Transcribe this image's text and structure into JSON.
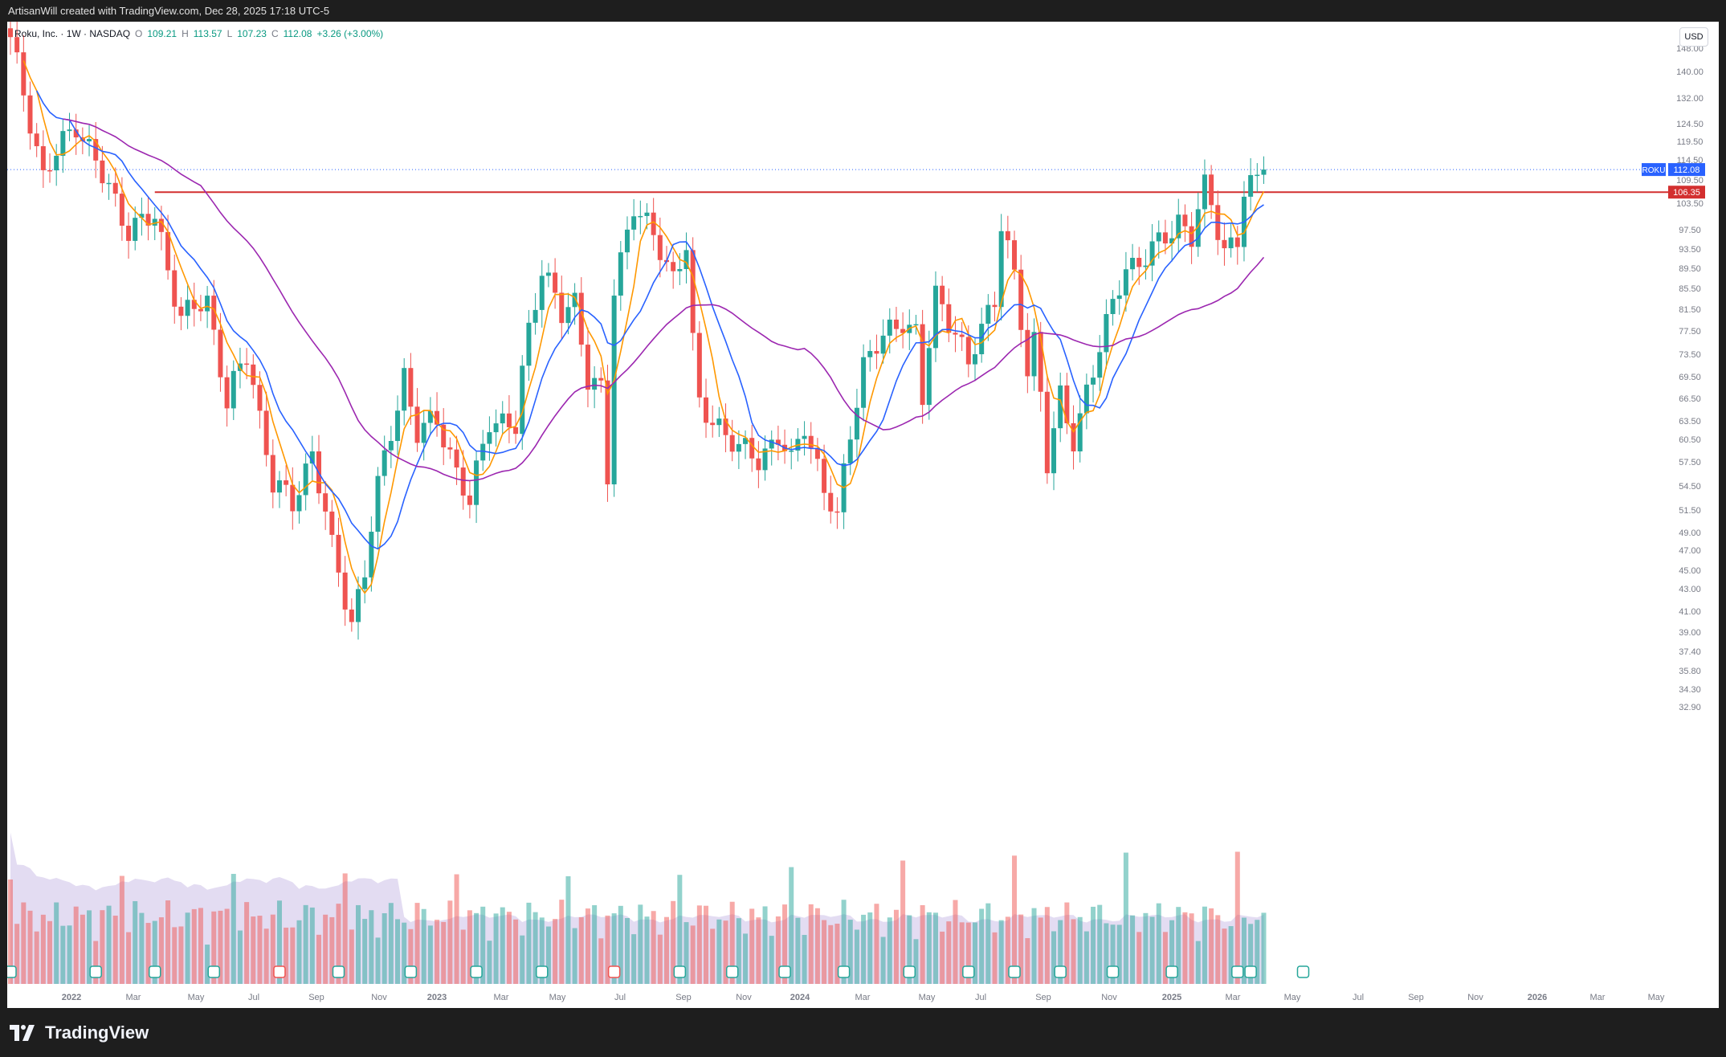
{
  "header": {
    "author_line": "ArtisanWill created with TradingView.com, Dec 28, 2025 17:18 UTC-5"
  },
  "legend": {
    "symbol_line": "Roku, Inc. · 1W · NASDAQ",
    "open_label": "O",
    "open_value": "109.21",
    "high_label": "H",
    "high_value": "113.57",
    "low_label": "L",
    "low_value": "107.23",
    "close_label": "C",
    "close_value": "112.08",
    "change_value": "+3.26 (+3.00%)"
  },
  "currency": "USD",
  "footer": {
    "logo_text": "TradingView"
  },
  "chart_data": {
    "type": "candlestick",
    "symbol": "ROKU",
    "interval": "1W",
    "y_axis_labels": [
      148.0,
      140.0,
      132.0,
      124.5,
      119.5,
      114.5,
      109.5,
      103.5,
      97.5,
      93.5,
      89.5,
      85.5,
      81.5,
      77.5,
      73.5,
      69.5,
      66.5,
      63.5,
      60.5,
      57.5,
      54.5,
      51.5,
      49.0,
      47.0,
      45.0,
      43.0,
      41.0,
      39.0,
      37.4,
      35.8,
      34.3,
      32.9
    ],
    "x_axis_labels": [
      "2022",
      "Mar",
      "May",
      "Jul",
      "Sep",
      "Nov",
      "2023",
      "Mar",
      "May",
      "Jul",
      "Sep",
      "Nov",
      "2024",
      "Mar",
      "May",
      "Jul",
      "Sep",
      "Nov",
      "2025",
      "Mar",
      "May",
      "Jul",
      "Sep",
      "Nov",
      "2026",
      "Mar",
      "May"
    ],
    "last_price": {
      "label": "ROKU",
      "value": "112.08"
    },
    "horizontal_line": {
      "value": "106.35",
      "color": "#d32f2f"
    },
    "colors": {
      "up": "#26a69a",
      "down": "#ef5350",
      "ma_fast": "#ff9800",
      "ma_mid": "#2962ff",
      "ma_slow": "#9c27b0",
      "volume_ma_fill": "#d1c4e9"
    },
    "anchors": [
      {
        "w": 0,
        "c": 150
      },
      {
        "w": 5,
        "c": 110
      },
      {
        "w": 10,
        "c": 125
      },
      {
        "w": 14,
        "c": 110
      },
      {
        "w": 18,
        "c": 98
      },
      {
        "w": 22,
        "c": 100
      },
      {
        "w": 26,
        "c": 80
      },
      {
        "w": 30,
        "c": 83
      },
      {
        "w": 33,
        "c": 66
      },
      {
        "w": 36,
        "c": 73
      },
      {
        "w": 40,
        "c": 55
      },
      {
        "w": 43,
        "c": 52
      },
      {
        "w": 46,
        "c": 59
      },
      {
        "w": 49,
        "c": 47
      },
      {
        "w": 52,
        "c": 40
      },
      {
        "w": 54,
        "c": 45
      },
      {
        "w": 56,
        "c": 54
      },
      {
        "w": 58,
        "c": 62
      },
      {
        "w": 60,
        "c": 70
      },
      {
        "w": 62,
        "c": 61
      },
      {
        "w": 65,
        "c": 64
      },
      {
        "w": 68,
        "c": 56
      },
      {
        "w": 70,
        "c": 52
      },
      {
        "w": 73,
        "c": 64
      },
      {
        "w": 77,
        "c": 62
      },
      {
        "w": 79,
        "c": 78
      },
      {
        "w": 81,
        "c": 90
      },
      {
        "w": 84,
        "c": 80
      },
      {
        "w": 86,
        "c": 83
      },
      {
        "w": 88,
        "c": 70
      },
      {
        "w": 90,
        "c": 67
      },
      {
        "w": 91,
        "c": 55
      },
      {
        "w": 92,
        "c": 85
      },
      {
        "w": 95,
        "c": 104
      },
      {
        "w": 97,
        "c": 98
      },
      {
        "w": 99,
        "c": 93
      },
      {
        "w": 101,
        "c": 88
      },
      {
        "w": 103,
        "c": 95
      },
      {
        "w": 104,
        "c": 75
      },
      {
        "w": 105,
        "c": 65
      },
      {
        "w": 108,
        "c": 63
      },
      {
        "w": 111,
        "c": 59
      },
      {
        "w": 114,
        "c": 58
      },
      {
        "w": 117,
        "c": 61
      },
      {
        "w": 119,
        "c": 57
      },
      {
        "w": 121,
        "c": 63
      },
      {
        "w": 124,
        "c": 54
      },
      {
        "w": 126,
        "c": 50
      },
      {
        "w": 128,
        "c": 62
      },
      {
        "w": 130,
        "c": 72
      },
      {
        "w": 133,
        "c": 76
      },
      {
        "w": 136,
        "c": 80
      },
      {
        "w": 138,
        "c": 77
      },
      {
        "w": 139,
        "c": 66
      },
      {
        "w": 141,
        "c": 84
      },
      {
        "w": 144,
        "c": 78
      },
      {
        "w": 146,
        "c": 71
      },
      {
        "w": 148,
        "c": 78
      },
      {
        "w": 150,
        "c": 84
      },
      {
        "w": 151,
        "c": 100
      },
      {
        "w": 153,
        "c": 87
      },
      {
        "w": 155,
        "c": 70
      },
      {
        "w": 156,
        "c": 76
      },
      {
        "w": 157,
        "c": 68
      },
      {
        "w": 158,
        "c": 58
      },
      {
        "w": 160,
        "c": 66
      },
      {
        "w": 162,
        "c": 60
      },
      {
        "w": 164,
        "c": 68
      },
      {
        "w": 167,
        "c": 78
      },
      {
        "w": 170,
        "c": 90
      },
      {
        "w": 172,
        "c": 91
      },
      {
        "w": 175,
        "c": 94
      },
      {
        "w": 178,
        "c": 100
      },
      {
        "w": 180,
        "c": 96
      },
      {
        "w": 182,
        "c": 107
      },
      {
        "w": 183,
        "c": 103
      },
      {
        "w": 185,
        "c": 94
      },
      {
        "w": 187,
        "c": 95
      },
      {
        "w": 188,
        "c": 106
      },
      {
        "w": 190,
        "c": 109
      },
      {
        "w": 191,
        "c": 112.08
      }
    ]
  }
}
